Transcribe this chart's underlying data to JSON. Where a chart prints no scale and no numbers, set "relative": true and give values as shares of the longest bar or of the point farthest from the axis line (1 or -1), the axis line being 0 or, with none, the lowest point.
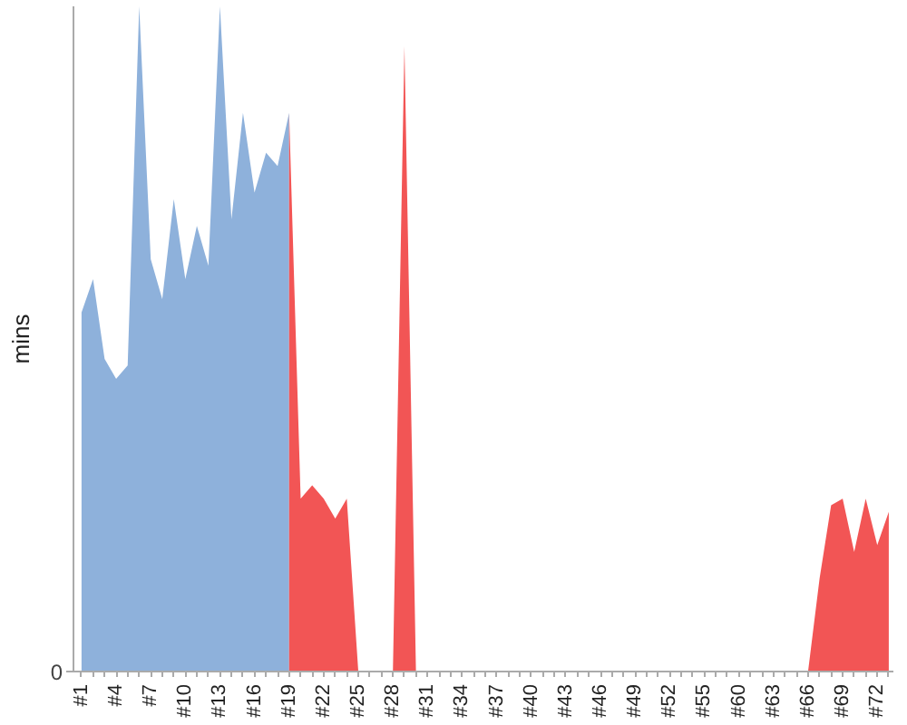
{
  "chart_data": {
    "type": "area",
    "ylabel": "mins",
    "relative": true,
    "annotations": [
      "0"
    ],
    "categories": [
      "#1",
      null,
      null,
      "#4",
      null,
      null,
      "#7",
      null,
      null,
      "#10",
      null,
      null,
      "#13",
      null,
      null,
      "#16",
      null,
      null,
      "#19",
      null,
      null,
      "#22",
      null,
      null,
      "#25",
      null,
      null,
      "#28",
      null,
      null,
      "#31",
      null,
      null,
      "#34",
      null,
      null,
      "#37",
      null,
      null,
      "#40",
      null,
      null,
      "#43",
      null,
      null,
      "#46",
      null,
      null,
      "#49",
      null,
      null,
      "#52",
      null,
      null,
      "#55",
      null,
      null,
      "#60",
      null,
      null,
      "#63",
      null,
      null,
      "#66",
      null,
      null,
      "#69",
      null,
      null,
      "#72",
      null
    ],
    "series": [
      {
        "color": "#8eb1db",
        "values": [
          0.54,
          0.59,
          0.47,
          0.44,
          0.46,
          1,
          0.62,
          0.56,
          0.71,
          0.59,
          0.67,
          0.61,
          1,
          0.68,
          0.84,
          0.72,
          0.78,
          0.76,
          0.84,
          null,
          null,
          null,
          null,
          null,
          null,
          null,
          null,
          null,
          null,
          null,
          null,
          null,
          null,
          null,
          null,
          null,
          null,
          null,
          null,
          null,
          null,
          null,
          null,
          null,
          null,
          null,
          null,
          null,
          null,
          null,
          null,
          null,
          null,
          null,
          null,
          null,
          null,
          null,
          null,
          null,
          null,
          null,
          null,
          null,
          null,
          null,
          null,
          null,
          null,
          null,
          null
        ]
      },
      {
        "color": "#f25555",
        "values": [
          null,
          null,
          null,
          null,
          null,
          null,
          null,
          null,
          null,
          null,
          null,
          null,
          null,
          null,
          null,
          null,
          null,
          null,
          0.84,
          0.26,
          0.28,
          0.26,
          0.23,
          0.26,
          0,
          0,
          0,
          0,
          0.94,
          0,
          0,
          0,
          0,
          0,
          0,
          0,
          0,
          0,
          0,
          0,
          0,
          0,
          0,
          0,
          0,
          0,
          0,
          0,
          0,
          0,
          0,
          0,
          0,
          0,
          0,
          0,
          0,
          0,
          0,
          0,
          0,
          0,
          0,
          0,
          0.14,
          0.25,
          0.26,
          0.18,
          0.26,
          0.19,
          0.24
        ]
      }
    ]
  }
}
